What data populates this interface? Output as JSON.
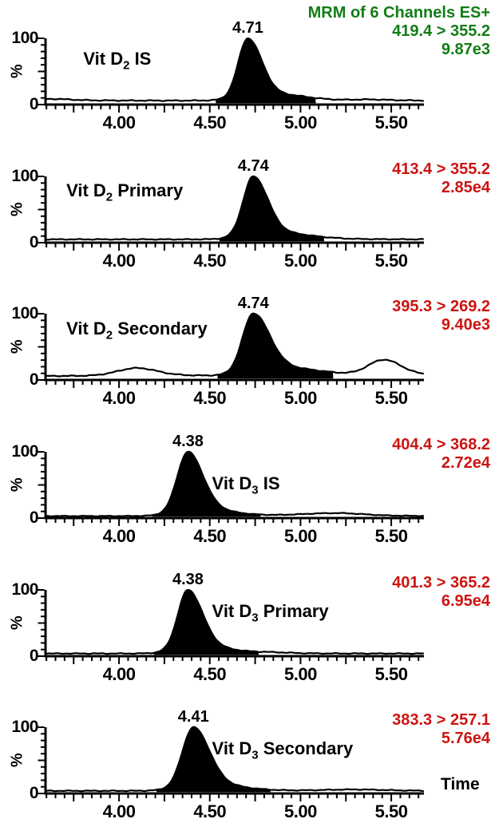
{
  "axis": {
    "x_tick_labels": [
      "4.00",
      "4.50",
      "5.00",
      "5.50"
    ],
    "x_tick_values": [
      4.0,
      4.5,
      5.0,
      5.5
    ],
    "x_range": [
      3.595,
      5.68
    ],
    "y_max_label": "100",
    "y_min_label": "0",
    "y_title": "%",
    "x_title": "Time"
  },
  "colors": {
    "channel_green": "#117d16",
    "channel_red": "#cc1411",
    "trace_black": "#000000",
    "background": "#ffffff"
  },
  "chart_data": [
    {
      "type": "area",
      "compound": {
        "pre": "Vit D",
        "sub": "2",
        "post": " IS"
      },
      "header": "MRM of 6 Channels ES+",
      "transition": "419.4 > 355.2",
      "intensity": "9.87e3",
      "color": "#117d16",
      "peak_label": "4.71",
      "main_peak_rt": 4.71,
      "xlim": [
        3.595,
        5.68
      ],
      "ylim": [
        0,
        100
      ],
      "baseline_pct": 6,
      "noise_amp": 0.7,
      "peaks": [
        {
          "rt": 4.71,
          "h": 94,
          "wl": 0.052,
          "wr": 0.075,
          "filled": true
        },
        {
          "rt": 4.99,
          "h": 3,
          "wl": 0.07,
          "wr": 0.12,
          "filled": false
        },
        {
          "rt": 3.63,
          "h": 2.5,
          "wl": 0.08,
          "wr": 0.1,
          "filled": false
        },
        {
          "rt": 5.38,
          "h": 1.5,
          "wl": 0.1,
          "wr": 0.1,
          "filled": false
        }
      ],
      "label_pos": {
        "fx": 0.1,
        "fy": 0.16
      }
    },
    {
      "type": "area",
      "compound": {
        "pre": "Vit D",
        "sub": "2",
        "post": " Primary"
      },
      "transition": "413.4 > 355.2",
      "intensity": "2.85e4",
      "color": "#cc1411",
      "peak_label": "4.74",
      "main_peak_rt": 4.74,
      "xlim": [
        3.595,
        5.68
      ],
      "ylim": [
        0,
        100
      ],
      "baseline_pct": 5,
      "noise_amp": 0.6,
      "peaks": [
        {
          "rt": 4.74,
          "h": 95,
          "wl": 0.055,
          "wr": 0.078,
          "filled": true
        },
        {
          "rt": 5.02,
          "h": 2.5,
          "wl": 0.08,
          "wr": 0.15,
          "filled": false
        }
      ],
      "label_pos": {
        "fx": 0.055,
        "fy": 0.07
      }
    },
    {
      "type": "area",
      "compound": {
        "pre": "Vit D",
        "sub": "2",
        "post": " Secondary"
      },
      "transition": "395.3 > 269.2",
      "intensity": "9.40e3",
      "color": "#cc1411",
      "peak_label": "4.74",
      "main_peak_rt": 4.74,
      "xlim": [
        3.595,
        5.68
      ],
      "ylim": [
        0,
        100
      ],
      "baseline_pct": 6,
      "noise_amp": 0.7,
      "peaks": [
        {
          "rt": 4.74,
          "h": 94,
          "wl": 0.058,
          "wr": 0.088,
          "filled": true
        },
        {
          "rt": 4.1,
          "h": 12,
          "wl": 0.105,
          "wr": 0.105,
          "filled": false
        },
        {
          "rt": 5.46,
          "h": 24,
          "wl": 0.085,
          "wr": 0.09,
          "filled": false
        },
        {
          "rt": 5.05,
          "h": 5,
          "wl": 0.14,
          "wr": 0.16,
          "filled": false
        }
      ],
      "label_pos": {
        "fx": 0.055,
        "fy": 0.07
      }
    },
    {
      "type": "area",
      "compound": {
        "pre": "Vit D",
        "sub": "3",
        "post": " IS"
      },
      "transition": "404.4 > 368.2",
      "intensity": "2.72e4",
      "color": "#cc1411",
      "peak_label": "4.38",
      "main_peak_rt": 4.38,
      "xlim": [
        3.595,
        5.68
      ],
      "ylim": [
        0,
        100
      ],
      "baseline_pct": 3,
      "noise_amp": 0.5,
      "peaks": [
        {
          "rt": 4.38,
          "h": 97,
          "wl": 0.058,
          "wr": 0.08,
          "filled": true
        },
        {
          "rt": 5.2,
          "h": 4.5,
          "wl": 0.2,
          "wr": 0.14,
          "filled": false
        }
      ],
      "label_pos": {
        "fx": 0.44,
        "fy": 0.33
      }
    },
    {
      "type": "area",
      "compound": {
        "pre": "Vit D",
        "sub": "3",
        "post": " Primary"
      },
      "transition": "401.3 > 365.2",
      "intensity": "6.95e4",
      "color": "#cc1411",
      "peak_label": "4.38",
      "main_peak_rt": 4.38,
      "xlim": [
        3.595,
        5.68
      ],
      "ylim": [
        0,
        100
      ],
      "baseline_pct": 4,
      "noise_amp": 0.6,
      "peaks": [
        {
          "rt": 4.38,
          "h": 96,
          "wl": 0.055,
          "wr": 0.078,
          "filled": true
        },
        {
          "rt": 4.84,
          "h": 1.5,
          "wl": 0.1,
          "wr": 0.1,
          "filled": false
        }
      ],
      "label_pos": {
        "fx": 0.44,
        "fy": 0.17
      }
    },
    {
      "type": "area",
      "compound": {
        "pre": "Vit D",
        "sub": "3",
        "post": " Secondary"
      },
      "transition": "383.3 > 257.1",
      "intensity": "5.76e4",
      "color": "#cc1411",
      "peak_label": "4.41",
      "main_peak_rt": 4.41,
      "xlim": [
        3.595,
        5.68
      ],
      "ylim": [
        0,
        100
      ],
      "baseline_pct": 4,
      "noise_amp": 0.6,
      "peaks": [
        {
          "rt": 4.41,
          "h": 96,
          "wl": 0.06,
          "wr": 0.085,
          "filled": true
        },
        {
          "rt": 5.3,
          "h": 2,
          "wl": 0.18,
          "wr": 0.15,
          "filled": false
        }
      ],
      "label_pos": {
        "fx": 0.44,
        "fy": 0.16
      }
    }
  ]
}
